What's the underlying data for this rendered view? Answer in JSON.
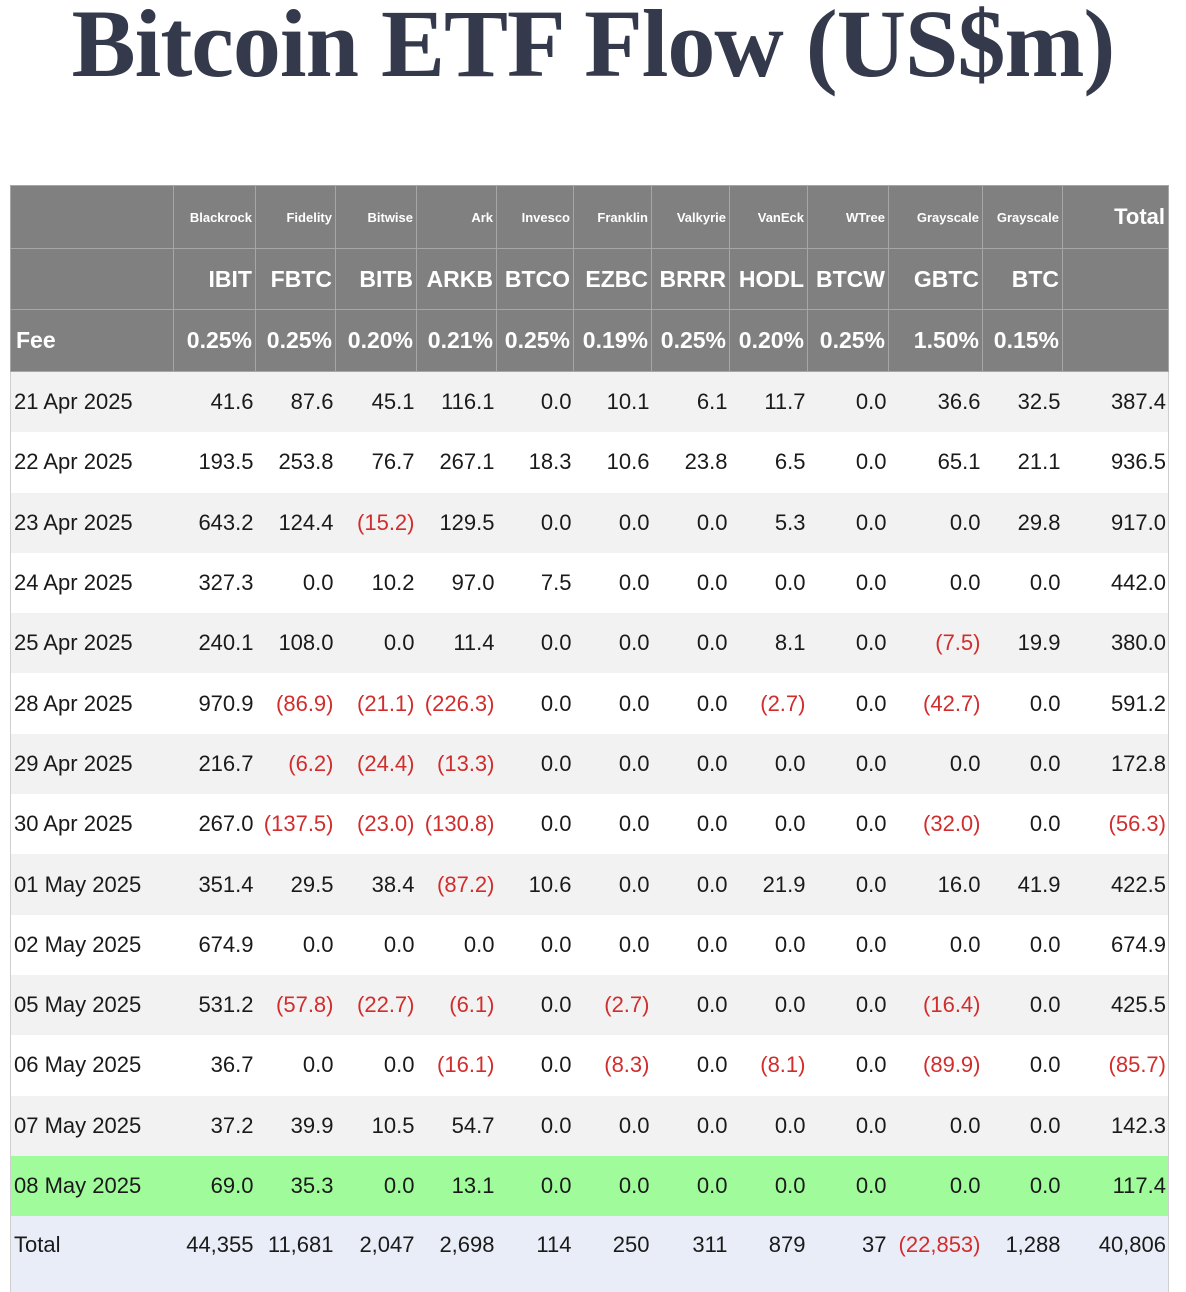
{
  "title": "Bitcoin ETF Flow (US$m)",
  "header": {
    "issuers": [
      "Blackrock",
      "Fidelity",
      "Bitwise",
      "Ark",
      "Invesco",
      "Franklin",
      "Valkyrie",
      "VanEck",
      "WTree",
      "Grayscale",
      "Grayscale"
    ],
    "total_label": "Total",
    "tickers": [
      "IBIT",
      "FBTC",
      "BITB",
      "ARKB",
      "BTCO",
      "EZBC",
      "BRRR",
      "HODL",
      "BTCW",
      "GBTC",
      "BTC"
    ],
    "fee_label": "Fee",
    "fees": [
      "0.25%",
      "0.25%",
      "0.20%",
      "0.21%",
      "0.25%",
      "0.19%",
      "0.25%",
      "0.20%",
      "0.25%",
      "1.50%",
      "0.15%"
    ]
  },
  "rows": [
    {
      "date": "21 Apr 2025",
      "values": [
        "41.6",
        "87.6",
        "45.1",
        "116.1",
        "0.0",
        "10.1",
        "6.1",
        "11.7",
        "0.0",
        "36.6",
        "32.5"
      ],
      "total": "387.4"
    },
    {
      "date": "22 Apr 2025",
      "values": [
        "193.5",
        "253.8",
        "76.7",
        "267.1",
        "18.3",
        "10.6",
        "23.8",
        "6.5",
        "0.0",
        "65.1",
        "21.1"
      ],
      "total": "936.5"
    },
    {
      "date": "23 Apr 2025",
      "values": [
        "643.2",
        "124.4",
        "(15.2)",
        "129.5",
        "0.0",
        "0.0",
        "0.0",
        "5.3",
        "0.0",
        "0.0",
        "29.8"
      ],
      "total": "917.0"
    },
    {
      "date": "24 Apr 2025",
      "values": [
        "327.3",
        "0.0",
        "10.2",
        "97.0",
        "7.5",
        "0.0",
        "0.0",
        "0.0",
        "0.0",
        "0.0",
        "0.0"
      ],
      "total": "442.0"
    },
    {
      "date": "25 Apr 2025",
      "values": [
        "240.1",
        "108.0",
        "0.0",
        "11.4",
        "0.0",
        "0.0",
        "0.0",
        "8.1",
        "0.0",
        "(7.5)",
        "19.9"
      ],
      "total": "380.0"
    },
    {
      "date": "28 Apr 2025",
      "values": [
        "970.9",
        "(86.9)",
        "(21.1)",
        "(226.3)",
        "0.0",
        "0.0",
        "0.0",
        "(2.7)",
        "0.0",
        "(42.7)",
        "0.0"
      ],
      "total": "591.2"
    },
    {
      "date": "29 Apr 2025",
      "values": [
        "216.7",
        "(6.2)",
        "(24.4)",
        "(13.3)",
        "0.0",
        "0.0",
        "0.0",
        "0.0",
        "0.0",
        "0.0",
        "0.0"
      ],
      "total": "172.8"
    },
    {
      "date": "30 Apr 2025",
      "values": [
        "267.0",
        "(137.5)",
        "(23.0)",
        "(130.8)",
        "0.0",
        "0.0",
        "0.0",
        "0.0",
        "0.0",
        "(32.0)",
        "0.0"
      ],
      "total": "(56.3)"
    },
    {
      "date": "01 May 2025",
      "values": [
        "351.4",
        "29.5",
        "38.4",
        "(87.2)",
        "10.6",
        "0.0",
        "0.0",
        "21.9",
        "0.0",
        "16.0",
        "41.9"
      ],
      "total": "422.5"
    },
    {
      "date": "02 May 2025",
      "values": [
        "674.9",
        "0.0",
        "0.0",
        "0.0",
        "0.0",
        "0.0",
        "0.0",
        "0.0",
        "0.0",
        "0.0",
        "0.0"
      ],
      "total": "674.9"
    },
    {
      "date": "05 May 2025",
      "values": [
        "531.2",
        "(57.8)",
        "(22.7)",
        "(6.1)",
        "0.0",
        "(2.7)",
        "0.0",
        "0.0",
        "0.0",
        "(16.4)",
        "0.0"
      ],
      "total": "425.5"
    },
    {
      "date": "06 May 2025",
      "values": [
        "36.7",
        "0.0",
        "0.0",
        "(16.1)",
        "0.0",
        "(8.3)",
        "0.0",
        "(8.1)",
        "0.0",
        "(89.9)",
        "0.0"
      ],
      "total": "(85.7)"
    },
    {
      "date": "07 May 2025",
      "values": [
        "37.2",
        "39.9",
        "10.5",
        "54.7",
        "0.0",
        "0.0",
        "0.0",
        "0.0",
        "0.0",
        "0.0",
        "0.0"
      ],
      "total": "142.3"
    },
    {
      "date": "08 May 2025",
      "values": [
        "69.0",
        "35.3",
        "0.0",
        "13.1",
        "0.0",
        "0.0",
        "0.0",
        "0.0",
        "0.0",
        "0.0",
        "0.0"
      ],
      "total": "117.4"
    }
  ],
  "totals_row": {
    "label": "Total",
    "values": [
      "44,355",
      "11,681",
      "2,047",
      "2,698",
      "114",
      "250",
      "311",
      "879",
      "37",
      "(22,853)",
      "1,288"
    ],
    "total": "40,806"
  },
  "colors": {
    "header_bg": "#808080",
    "negative": "#d22d2d",
    "latest_row": "#a0fc9a",
    "totals_row": "#e9edf7",
    "title": "#343a4c"
  }
}
